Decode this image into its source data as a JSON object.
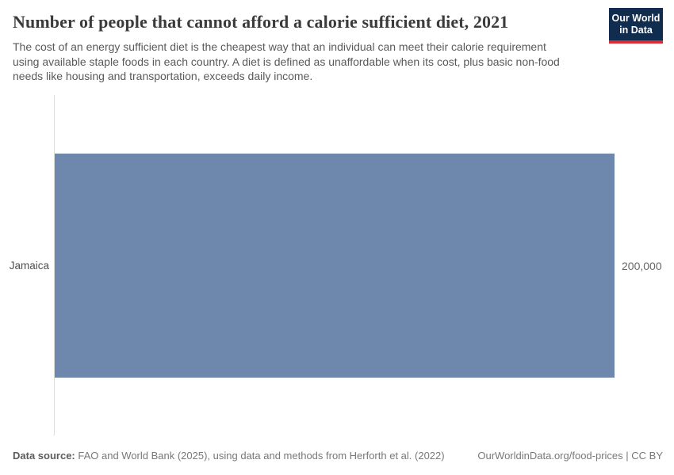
{
  "header": {
    "title": "Number of people that cannot afford a calorie sufficient diet, 2021",
    "subtitle": "The cost of an energy sufficient diet is the cheapest way that an individual can meet their calorie requirement using available staple foods in each country. A diet is defined as unaffordable when its cost, plus basic non-food needs like housing and transportation, exceeds daily income.",
    "logo": {
      "line1": "Our World",
      "line2": "in Data",
      "bg_color": "#102d50",
      "accent_color": "#dc2e32"
    }
  },
  "chart_data": {
    "type": "bar",
    "orientation": "horizontal",
    "title": "Number of people that cannot afford a calorie sufficient diet, 2021",
    "categories": [
      "Jamaica"
    ],
    "values": [
      200000
    ],
    "value_labels": [
      "200,000"
    ],
    "xlim": [
      0,
      200000
    ],
    "grid": false,
    "legend": false,
    "bar_color": "#6e87ac",
    "axis_color": "#dddddd"
  },
  "footer": {
    "source_label": "Data source:",
    "source_text": " FAO and World Bank (2025), using data and methods from Herforth et al. (2022)",
    "link_text": "OurWorldinData.org/food-prices | CC BY"
  }
}
